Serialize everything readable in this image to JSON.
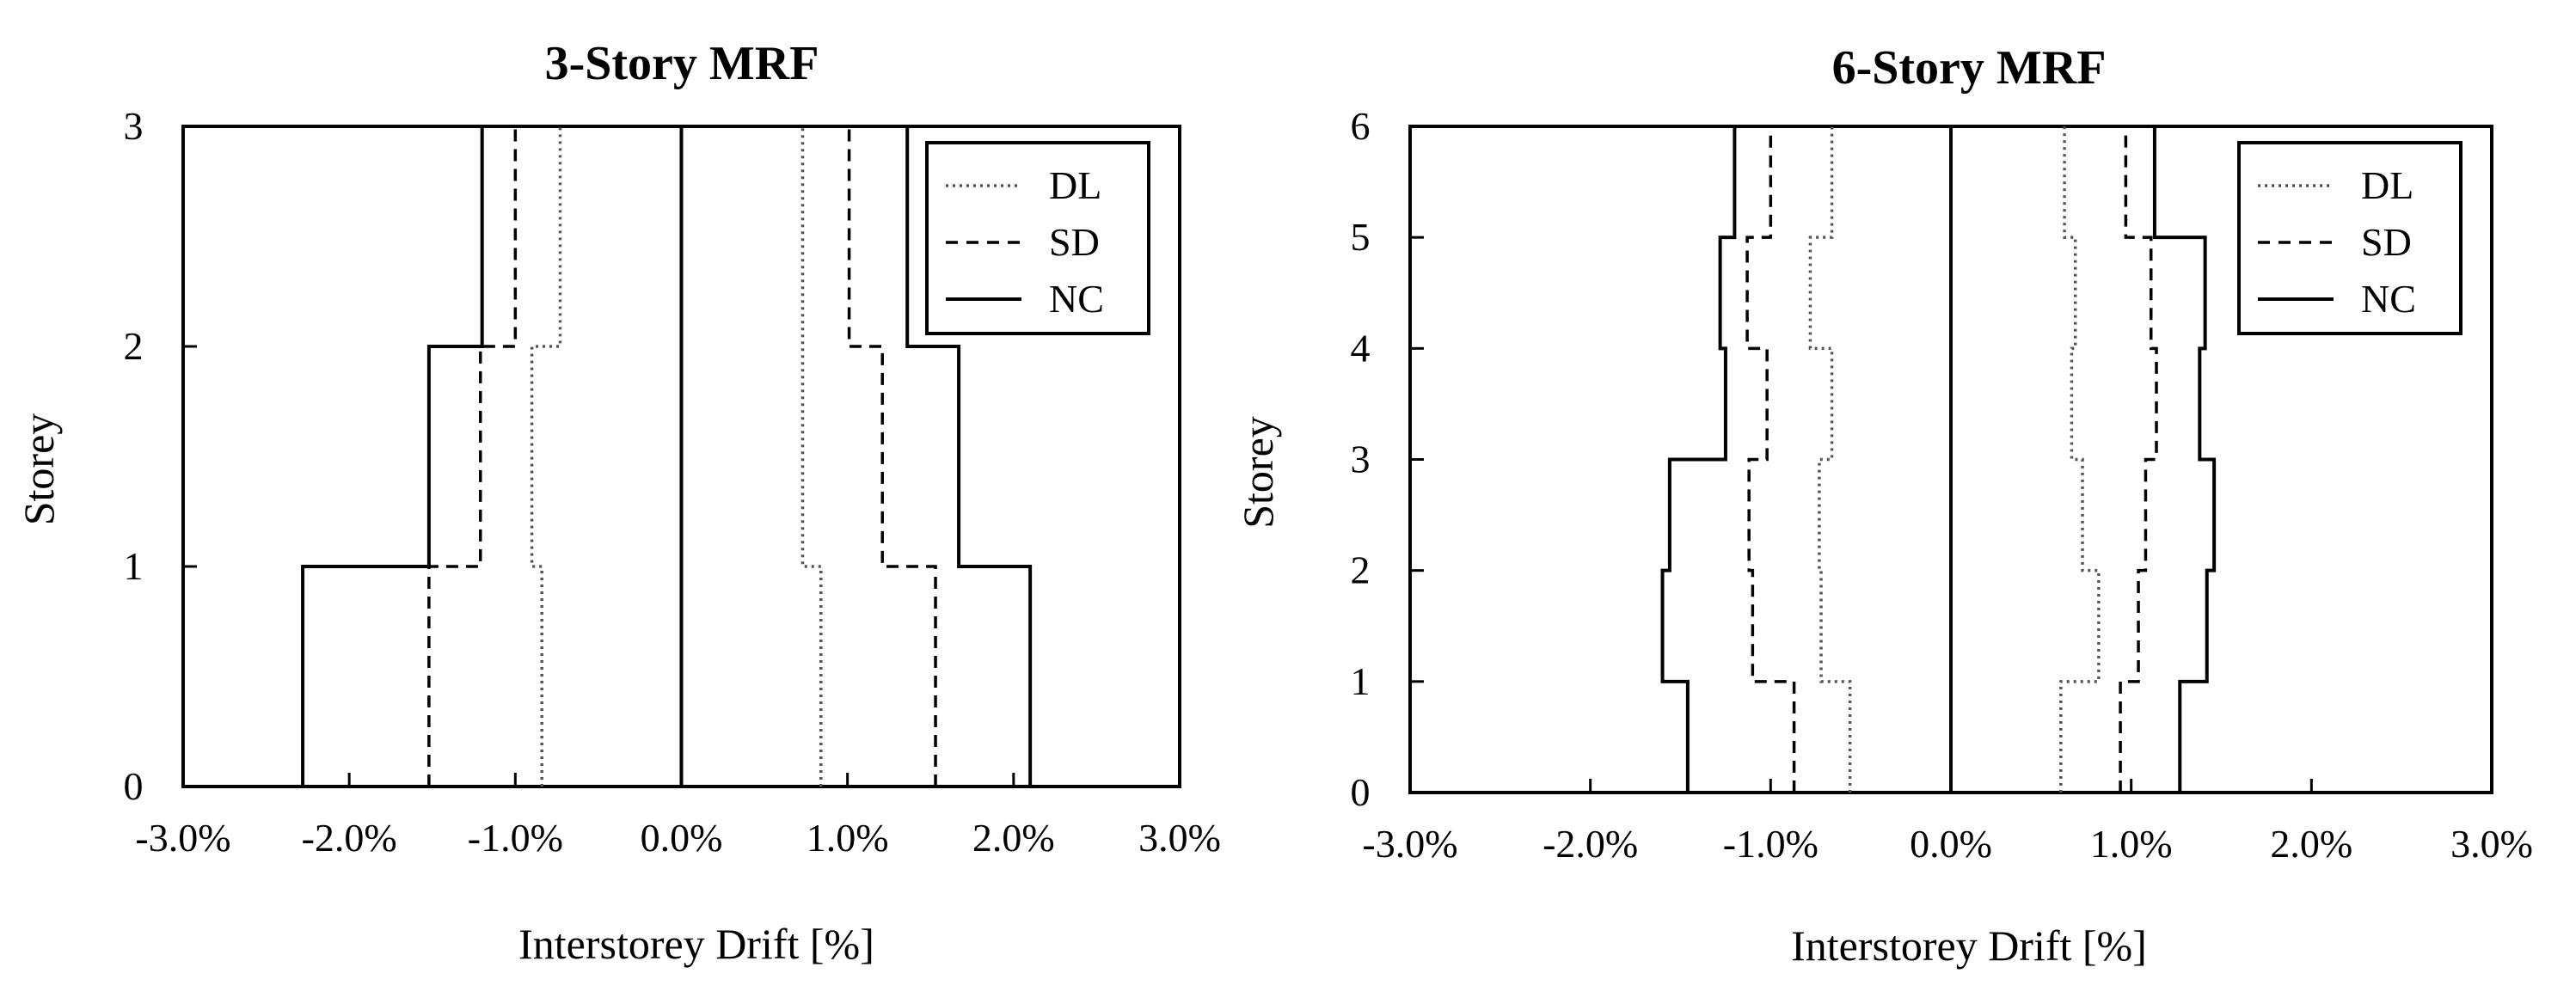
{
  "chart_data": [
    {
      "type": "line",
      "title": "3-Story MRF",
      "xlabel": "Interstorey Drift [%]",
      "ylabel": "Storey",
      "xlim": [
        -3.0,
        3.0
      ],
      "ylim": [
        0,
        3
      ],
      "x_tick_labels": [
        "-3.0%",
        "-2.0%",
        "-1.0%",
        "0.0%",
        "1.0%",
        "2.0%",
        "3.0%"
      ],
      "x_tick_values": [
        -3.0,
        -2.0,
        -1.0,
        0.0,
        1.0,
        2.0,
        3.0
      ],
      "y_tick_labels": [
        "0",
        "1",
        "2",
        "3"
      ],
      "y_tick_values": [
        0,
        1,
        2,
        3
      ],
      "grid": false,
      "legend_position": "top-right",
      "legend": [
        "DL",
        "SD",
        "NC"
      ],
      "series": [
        {
          "name": "DL",
          "style": "dotted",
          "side": "negative",
          "values": [
            -0.84,
            -0.9,
            -0.73
          ]
        },
        {
          "name": "DL",
          "style": "dotted",
          "side": "positive",
          "values": [
            0.84,
            0.73,
            0.73
          ]
        },
        {
          "name": "SD",
          "style": "dashed",
          "side": "negative",
          "values": [
            -1.52,
            -1.21,
            -1.0
          ]
        },
        {
          "name": "SD",
          "style": "dashed",
          "side": "positive",
          "values": [
            1.53,
            1.21,
            1.01
          ]
        },
        {
          "name": "NC",
          "style": "solid",
          "side": "negative",
          "values": [
            -2.28,
            -1.52,
            -1.2
          ]
        },
        {
          "name": "NC",
          "style": "solid",
          "side": "positive",
          "values": [
            2.1,
            1.67,
            1.36
          ]
        }
      ]
    },
    {
      "type": "line",
      "title": "6-Story MRF",
      "xlabel": "Interstorey Drift [%]",
      "ylabel": "Storey",
      "xlim": [
        -3.0,
        3.0
      ],
      "ylim": [
        0,
        6
      ],
      "x_tick_labels": [
        "-3.0%",
        "-2.0%",
        "-1.0%",
        "0.0%",
        "1.0%",
        "2.0%",
        "3.0%"
      ],
      "x_tick_values": [
        -3.0,
        -2.0,
        -1.0,
        0.0,
        1.0,
        2.0,
        3.0
      ],
      "y_tick_labels": [
        "0",
        "1",
        "2",
        "3",
        "4",
        "5",
        "6"
      ],
      "y_tick_values": [
        0,
        1,
        2,
        3,
        4,
        5,
        6
      ],
      "grid": false,
      "legend_position": "top-right",
      "legend": [
        "DL",
        "SD",
        "NC"
      ],
      "series": [
        {
          "name": "DL",
          "style": "dotted",
          "side": "negative",
          "values": [
            -0.56,
            -0.72,
            -0.73,
            -0.66,
            -0.78,
            -0.66
          ]
        },
        {
          "name": "DL",
          "style": "dotted",
          "side": "positive",
          "values": [
            0.61,
            0.82,
            0.73,
            0.67,
            0.69,
            0.63
          ]
        },
        {
          "name": "SD",
          "style": "dashed",
          "side": "negative",
          "values": [
            -0.87,
            -1.1,
            -1.12,
            -1.02,
            -1.13,
            -1.0
          ]
        },
        {
          "name": "SD",
          "style": "dashed",
          "side": "positive",
          "values": [
            0.94,
            1.04,
            1.08,
            1.14,
            1.11,
            0.97
          ]
        },
        {
          "name": "NC",
          "style": "solid",
          "side": "negative",
          "values": [
            -1.46,
            -1.6,
            -1.56,
            -1.25,
            -1.28,
            -1.2
          ]
        },
        {
          "name": "NC",
          "style": "solid",
          "side": "positive",
          "values": [
            1.27,
            1.42,
            1.46,
            1.38,
            1.41,
            1.13
          ]
        }
      ]
    }
  ]
}
